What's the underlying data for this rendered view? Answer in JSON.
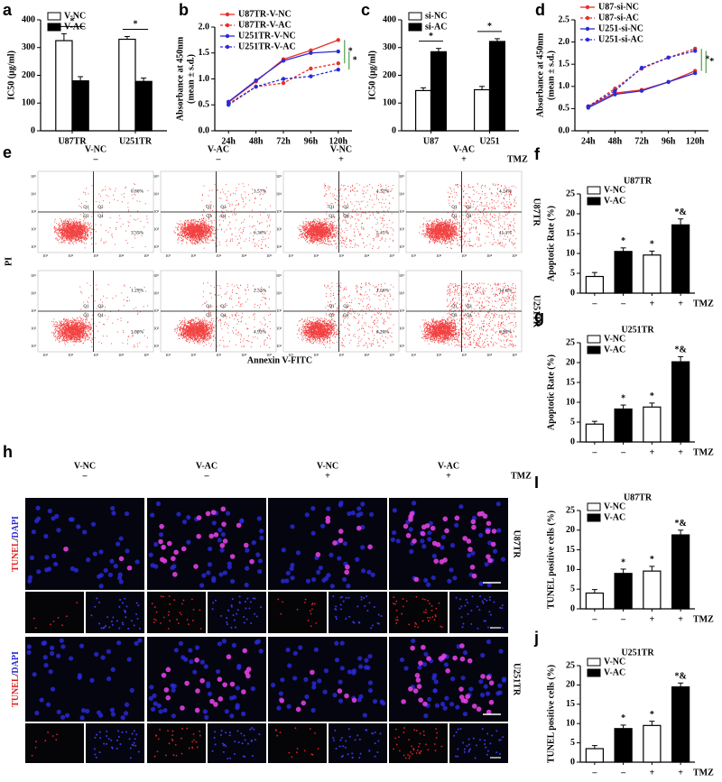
{
  "chart_data": [
    {
      "panel": "a",
      "type": "bar",
      "ylabel": "IC50 (μg/ml)",
      "categories": [
        "U87TR",
        "U251TR"
      ],
      "series": [
        {
          "name": "V-NC",
          "color": "#ffffff",
          "values": [
            325,
            330
          ],
          "errors": [
            25,
            10
          ]
        },
        {
          "name": "V-AC",
          "color": "#000000",
          "values": [
            180,
            178
          ],
          "errors": [
            15,
            12
          ]
        }
      ],
      "ylim": [
        0,
        400
      ],
      "yticks": [
        0,
        100,
        200,
        300,
        400
      ],
      "annotations": [
        "*",
        "*"
      ],
      "legend": "upper left"
    },
    {
      "panel": "b",
      "type": "line",
      "ylabel": [
        "Absorbance at 450nm",
        "(mean ± s.d.)"
      ],
      "categories": [
        "24h",
        "48h",
        "72h",
        "96h",
        "120h"
      ],
      "series": [
        {
          "name": "U87TR-V-NC",
          "color": "#e8302a",
          "dash": false,
          "values": [
            0.55,
            0.95,
            1.38,
            1.55,
            1.75
          ]
        },
        {
          "name": "U87TR-V-AC",
          "color": "#e8302a",
          "dash": true,
          "values": [
            0.52,
            0.85,
            0.92,
            1.2,
            1.3
          ]
        },
        {
          "name": "U251TR-V-NC",
          "color": "#2b2bd6",
          "dash": false,
          "values": [
            0.56,
            0.97,
            1.35,
            1.5,
            1.53
          ]
        },
        {
          "name": "U251TR-V-AC",
          "color": "#2b2bd6",
          "dash": true,
          "values": [
            0.5,
            0.85,
            1.0,
            1.05,
            1.18
          ]
        }
      ],
      "ylim": [
        0,
        2
      ],
      "yticks": [
        {
          "value": 0,
          "label": "0.0"
        },
        {
          "value": 0.5,
          "label": "0.5"
        },
        {
          "value": 1,
          "label": "1.0"
        },
        {
          "value": 1.5,
          "label": "1.5"
        },
        {
          "value": 2,
          "label": "2.0"
        }
      ],
      "annotations": [
        "*",
        "*"
      ],
      "legend": "upper left"
    },
    {
      "panel": "c",
      "type": "bar",
      "ylabel": "IC50 (μg/ml)",
      "categories": [
        "U87",
        "U251"
      ],
      "series": [
        {
          "name": "si-NC",
          "color": "#ffffff",
          "values": [
            145,
            148
          ],
          "errors": [
            10,
            12
          ]
        },
        {
          "name": "si-AC",
          "color": "#000000",
          "values": [
            285,
            322
          ],
          "errors": [
            12,
            10
          ]
        }
      ],
      "ylim": [
        0,
        400
      ],
      "yticks": [
        0,
        100,
        200,
        300,
        400
      ],
      "annotations": [
        "*",
        "*"
      ],
      "legend": "upper left"
    },
    {
      "panel": "d",
      "type": "line",
      "ylabel": [
        "Absorbance at 450nm",
        "(mean ± s.d.)"
      ],
      "categories": [
        "24h",
        "48h",
        "72h",
        "96h",
        "120h"
      ],
      "series": [
        {
          "name": "U87-si-NC",
          "color": "#e8302a",
          "dash": false,
          "values": [
            0.55,
            0.85,
            0.92,
            1.1,
            1.35
          ]
        },
        {
          "name": "U87-si-AC",
          "color": "#e8302a",
          "dash": true,
          "values": [
            0.55,
            0.95,
            1.4,
            1.65,
            1.85
          ]
        },
        {
          "name": "U251-si-NC",
          "color": "#2b2bd6",
          "dash": false,
          "values": [
            0.52,
            0.82,
            0.9,
            1.1,
            1.3
          ]
        },
        {
          "name": "U251-si-AC",
          "color": "#2b2bd6",
          "dash": true,
          "values": [
            0.55,
            0.9,
            1.42,
            1.65,
            1.8
          ]
        }
      ],
      "ylim": [
        0,
        2.5
      ],
      "yticks": [
        {
          "value": 0,
          "label": "0.0"
        },
        {
          "value": 0.5,
          "label": "0.5"
        },
        {
          "value": 1,
          "label": "1.0"
        },
        {
          "value": 1.5,
          "label": "1.5"
        },
        {
          "value": 2,
          "label": "2.0"
        },
        {
          "value": 2.5,
          "label": "2.5"
        }
      ],
      "annotations": [
        "*",
        "*"
      ],
      "legend": "upper left"
    },
    {
      "panel": "f",
      "type": "bar",
      "title": "U87TR",
      "ylabel": "Apoptotic Rate (%)",
      "categories": [
        "–",
        "–",
        "+",
        "+"
      ],
      "x_label": "TMZ",
      "series": [
        {
          "name": "V-NC",
          "color": "#ffffff",
          "values": [
            4.2,
            null,
            9.6,
            null
          ],
          "errors": [
            1,
            null,
            1,
            null
          ]
        },
        {
          "name": "V-AC",
          "color": "#000000",
          "values": [
            null,
            10.5,
            null,
            17.2
          ],
          "errors": [
            null,
            0.9,
            null,
            1.5
          ]
        }
      ],
      "ylim": [
        0,
        25
      ],
      "yticks": [
        0,
        5,
        10,
        15,
        20,
        25
      ],
      "annotations": [
        null,
        "*",
        "*",
        "*&"
      ],
      "legend": "upper left"
    },
    {
      "panel": "g",
      "type": "bar",
      "title": "U251TR",
      "ylabel": "Apoptotic Rate (%)",
      "categories": [
        "–",
        "–",
        "+",
        "+"
      ],
      "x_label": "TMZ",
      "series": [
        {
          "name": "V-NC",
          "color": "#ffffff",
          "values": [
            4.5,
            null,
            8.8,
            null
          ],
          "errors": [
            0.7,
            null,
            1,
            null
          ]
        },
        {
          "name": "V-AC",
          "color": "#000000",
          "values": [
            null,
            8.3,
            null,
            20.2
          ],
          "errors": [
            null,
            1,
            null,
            1.3
          ]
        }
      ],
      "ylim": [
        0,
        25
      ],
      "yticks": [
        0,
        5,
        10,
        15,
        20,
        25
      ],
      "annotations": [
        null,
        "*",
        "*",
        "*&"
      ],
      "legend": "upper left"
    },
    {
      "panel": "I",
      "type": "bar",
      "title": "U87TR",
      "ylabel": "TUNEL positive cells (%)",
      "categories": [
        "–",
        "–",
        "+",
        "+"
      ],
      "x_label": "TMZ",
      "series": [
        {
          "name": "V-NC",
          "color": "#ffffff",
          "values": [
            4,
            null,
            9.6,
            null
          ],
          "errors": [
            0.9,
            null,
            1.2,
            null
          ]
        },
        {
          "name": "V-AC",
          "color": "#000000",
          "values": [
            null,
            9,
            null,
            18.8
          ],
          "errors": [
            null,
            1.1,
            null,
            1.2
          ]
        }
      ],
      "ylim": [
        0,
        25
      ],
      "yticks": [
        0,
        5,
        10,
        15,
        20,
        25
      ],
      "annotations": [
        null,
        "*",
        "*",
        "*&"
      ],
      "legend": "upper left"
    },
    {
      "panel": "j",
      "type": "bar",
      "title": "U251TR",
      "ylabel": "TUNEL positive cells (%)",
      "categories": [
        "–",
        "–",
        "+",
        "+"
      ],
      "x_label": "TMZ",
      "series": [
        {
          "name": "V-NC",
          "color": "#ffffff",
          "values": [
            3.5,
            null,
            9.5,
            null
          ],
          "errors": [
            0.8,
            null,
            1.1,
            null
          ]
        },
        {
          "name": "V-AC",
          "color": "#000000",
          "values": [
            null,
            8.7,
            null,
            19.5
          ],
          "errors": [
            null,
            0.9,
            null,
            1
          ]
        }
      ],
      "ylim": [
        0,
        25
      ],
      "yticks": [
        0,
        5,
        10,
        15,
        20,
        25
      ],
      "annotations": [
        null,
        "*",
        "*",
        "*&"
      ],
      "legend": "upper left"
    }
  ],
  "flow": {
    "panel": "e",
    "treatment": "TMZ",
    "ylabel": "PI",
    "xlabel": "Annexin V-FITC",
    "columns": [
      {
        "label": "V-NC",
        "tmz": "–"
      },
      {
        "label": "V-AC",
        "tmz": "–"
      },
      {
        "label": "V-NC",
        "tmz": "+"
      },
      {
        "label": "V-AC",
        "tmz": "+"
      }
    ],
    "quadrants": [
      "Q1",
      "Q2",
      "Q3",
      "Q4"
    ],
    "ticks": [
      "10¹",
      "10²",
      "10³",
      "10⁴",
      "10⁵"
    ],
    "rows": [
      {
        "label": "U87TR",
        "plots": [
          {
            "q2": "0.80%",
            "q4": "3.35%"
          },
          {
            "q2": "3.57%",
            "q4": "6.36%"
          },
          {
            "q2": "4.37%",
            "q4": "5.45%"
          },
          {
            "q2": "4.24%",
            "q4": "11.1%"
          }
        ]
      },
      {
        "label": "U251TR",
        "plots": [
          {
            "q2": "1.29%",
            "q4": "3.00%"
          },
          {
            "q2": "2.32%",
            "q4": "4.93%"
          },
          {
            "q2": "1.56%",
            "q4": "6.20%"
          },
          {
            "q2": "14.6%",
            "q4": "6.93%"
          }
        ]
      }
    ]
  },
  "tunel": {
    "panel": "h",
    "treatment": "TMZ",
    "stain": [
      "TUNEL",
      "/",
      "DAPI"
    ],
    "columns": [
      {
        "label": "V-NC",
        "tmz": "–"
      },
      {
        "label": "V-AC",
        "tmz": "–"
      },
      {
        "label": "V-NC",
        "tmz": "+"
      },
      {
        "label": "V-AC",
        "tmz": "+"
      }
    ],
    "rows": [
      "U87TR",
      "U251TR"
    ]
  }
}
